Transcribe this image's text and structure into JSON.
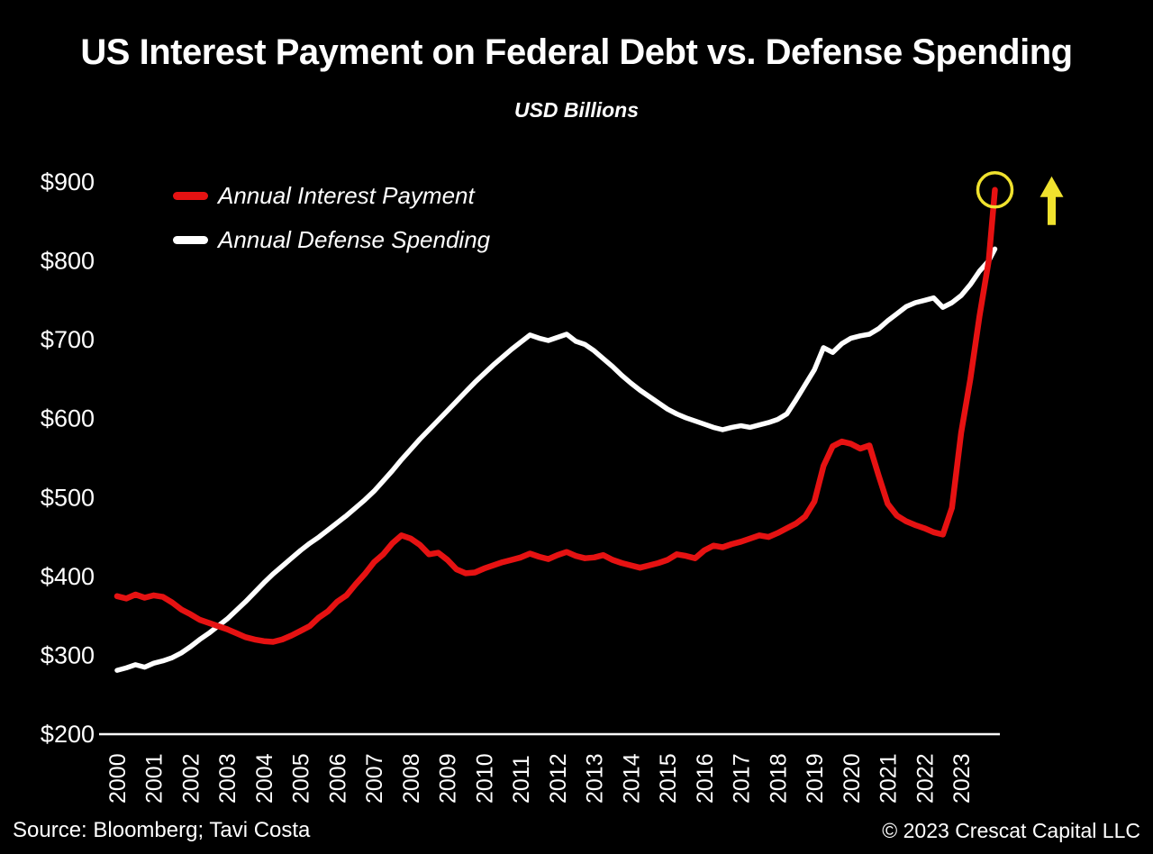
{
  "title": "US Interest Payment on Federal Debt vs. Defense Spending",
  "subtitle": "USD Billions",
  "colors": {
    "background": "#000000",
    "text": "#ffffff",
    "axis": "#ffffff",
    "interest_red": "#e61212",
    "defense_white": "#ffffff",
    "annotation_yellow": "#f0e22e"
  },
  "legend": {
    "items": [
      {
        "label": "Annual Interest Payment",
        "color": "#e61212"
      },
      {
        "label": "Annual Defense Spending",
        "color": "#ffffff"
      }
    ]
  },
  "footer": {
    "source": "Source: Bloomberg; Tavi Costa",
    "copyright": "© 2023 Crescat Capital LLC"
  },
  "chart_data": {
    "type": "line",
    "title": "US Interest Payment on Federal Debt vs. Defense Spending",
    "subtitle": "USD Billions",
    "xlabel": "",
    "ylabel": "USD Billions",
    "grid": false,
    "legend_position": "upper-left",
    "x_range": [
      2000,
      2023.92
    ],
    "ylim": [
      200,
      900
    ],
    "y_ticks": [
      {
        "label": "$900",
        "value": 900
      },
      {
        "label": "$800",
        "value": 800
      },
      {
        "label": "$700",
        "value": 700
      },
      {
        "label": "$600",
        "value": 600
      },
      {
        "label": "$500",
        "value": 500
      },
      {
        "label": "$400",
        "value": 400
      },
      {
        "label": "$300",
        "value": 300
      },
      {
        "label": "$200",
        "value": 200
      }
    ],
    "x_ticks": [
      "2000",
      "2001",
      "2002",
      "2003",
      "2004",
      "2005",
      "2006",
      "2007",
      "2008",
      "2009",
      "2010",
      "2011",
      "2012",
      "2013",
      "2014",
      "2015",
      "2016",
      "2017",
      "2018",
      "2019",
      "2020",
      "2021",
      "2022",
      "2023"
    ],
    "x": [
      2000,
      2000.25,
      2000.5,
      2000.75,
      2001,
      2001.25,
      2001.5,
      2001.75,
      2002,
      2002.25,
      2002.5,
      2002.75,
      2003,
      2003.25,
      2003.5,
      2003.75,
      2004,
      2004.25,
      2004.5,
      2004.75,
      2005,
      2005.25,
      2005.5,
      2005.75,
      2006,
      2006.25,
      2006.5,
      2006.75,
      2007,
      2007.25,
      2007.5,
      2007.75,
      2008,
      2008.25,
      2008.5,
      2008.75,
      2009,
      2009.25,
      2009.5,
      2009.75,
      2010,
      2010.25,
      2010.5,
      2010.75,
      2011,
      2011.25,
      2011.5,
      2011.75,
      2012,
      2012.25,
      2012.5,
      2012.75,
      2013,
      2013.25,
      2013.5,
      2013.75,
      2014,
      2014.25,
      2014.5,
      2014.75,
      2015,
      2015.25,
      2015.5,
      2015.75,
      2016,
      2016.25,
      2016.5,
      2016.75,
      2017,
      2017.25,
      2017.5,
      2017.75,
      2018,
      2018.25,
      2018.5,
      2018.75,
      2019,
      2019.25,
      2019.5,
      2019.75,
      2020,
      2020.25,
      2020.5,
      2020.75,
      2021,
      2021.25,
      2021.5,
      2021.75,
      2022,
      2022.25,
      2022.5,
      2022.75,
      2023,
      2023.25,
      2023.5,
      2023.75,
      2023.92
    ],
    "series": [
      {
        "name": "Annual Defense Spending",
        "color": "#ffffff",
        "values": [
          281,
          284,
          288,
          285,
          290,
          293,
          297,
          303,
          311,
          320,
          328,
          337,
          346,
          357,
          368,
          380,
          392,
          403,
          413,
          423,
          433,
          442,
          450,
          459,
          468,
          477,
          487,
          497,
          508,
          521,
          534,
          548,
          561,
          574,
          586,
          598,
          610,
          622,
          634,
          646,
          657,
          668,
          678,
          688,
          697,
          706,
          702,
          699,
          703,
          707,
          698,
          694,
          686,
          676,
          666,
          655,
          645,
          636,
          628,
          620,
          612,
          606,
          601,
          597,
          593,
          589,
          586,
          589,
          591,
          589,
          592,
          595,
          599,
          606,
          624,
          643,
          662,
          690,
          684,
          695,
          702,
          705,
          707,
          714,
          724,
          733,
          742,
          747,
          750,
          753,
          741,
          747,
          756,
          770,
          787,
          800,
          815
        ]
      },
      {
        "name": "Annual Interest Payment",
        "color": "#e61212",
        "values": [
          375,
          372,
          377,
          373,
          376,
          374,
          367,
          358,
          352,
          345,
          341,
          337,
          333,
          328,
          323,
          320,
          318,
          317,
          320,
          325,
          331,
          337,
          348,
          356,
          368,
          376,
          390,
          403,
          418,
          428,
          442,
          452,
          448,
          440,
          428,
          430,
          421,
          409,
          404,
          405,
          410,
          414,
          418,
          421,
          424,
          429,
          425,
          422,
          427,
          431,
          426,
          423,
          424,
          427,
          421,
          417,
          414,
          411,
          414,
          417,
          421,
          428,
          426,
          423,
          433,
          439,
          437,
          441,
          444,
          448,
          452,
          450,
          455,
          461,
          467,
          476,
          495,
          540,
          565,
          571,
          568,
          562,
          566,
          528,
          492,
          477,
          470,
          465,
          461,
          456,
          453,
          487,
          582,
          650,
          730,
          800,
          890
        ]
      }
    ],
    "annotations": {
      "endpoint_circle": {
        "series": "Annual Interest Payment",
        "x": 2023.92,
        "value": 890,
        "color": "#f0e22e"
      },
      "up_arrow": {
        "color": "#f0e22e"
      }
    }
  }
}
